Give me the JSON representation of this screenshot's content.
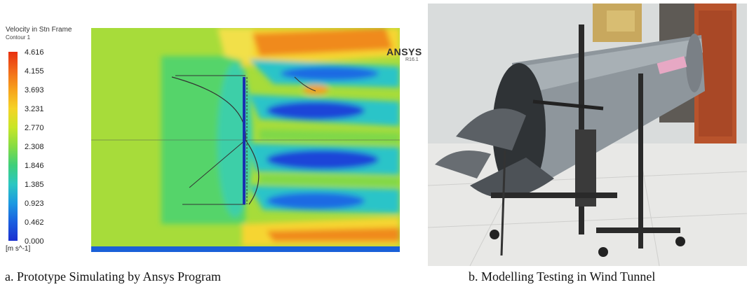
{
  "legend": {
    "title": "Velocity in Stn Frame",
    "subtitle": "Contour 1",
    "ticks": [
      "4.616",
      "4.155",
      "3.693",
      "3.231",
      "2.770",
      "2.308",
      "1.846",
      "1.385",
      "0.923",
      "0.462",
      "0.000"
    ],
    "unit": "[m s^-1]"
  },
  "branding": {
    "name": "ANSYS",
    "version": "R16.1"
  },
  "photo": {
    "description_colors": {
      "floor": "#e8e8e6",
      "wall": "#d9dcdc",
      "cabinet": "#b8532c",
      "tube": "#8e969c"
    }
  },
  "captions": {
    "a": "a.   Prototype Simulating by Ansys Program",
    "b": "b.   Modelling Testing in Wind Tunnel"
  }
}
